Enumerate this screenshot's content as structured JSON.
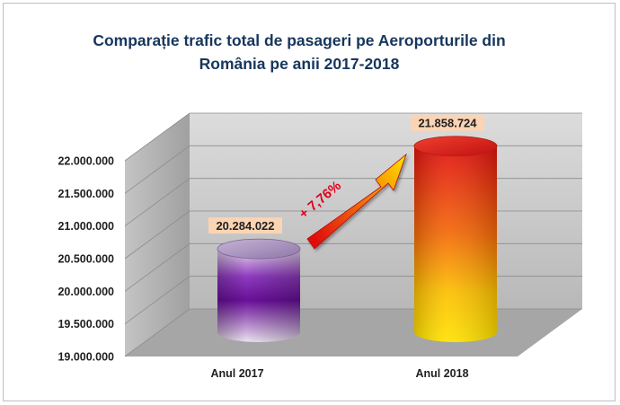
{
  "chart_data": {
    "type": "bar",
    "style": "3d-cylinder",
    "title_lines": [
      "Comparație trafic total de pasageri pe Aeroporturile din",
      "România pe anii 2017-2018"
    ],
    "categories": [
      "Anul 2017",
      "Anul 2018"
    ],
    "values": [
      20284022,
      21858724
    ],
    "data_labels": [
      "20.284.022",
      "21.858.724"
    ],
    "ylim": [
      19000000,
      22000000
    ],
    "yticks": [
      19000000,
      19500000,
      20000000,
      20500000,
      21000000,
      21500000,
      22000000
    ],
    "ytick_labels": [
      "19.000.000",
      "19.500.000",
      "20.000.000",
      "20.500.000",
      "21.000.000",
      "21.500.000",
      "22.000.000"
    ],
    "grid": true,
    "annotation": "+ 7,76%",
    "colors": {
      "bar_2017": "#7a1fa2",
      "bar_2018_top": "#e01010",
      "bar_2018_bottom": "#ffd700",
      "wall": "#c8c8c8",
      "floor": "#a6a6a6",
      "arrow_start": "#e01010",
      "arrow_end": "#ffe000",
      "label_bg": "#fbd4b4",
      "title": "#17365d",
      "annotation": "#e0001b"
    }
  }
}
